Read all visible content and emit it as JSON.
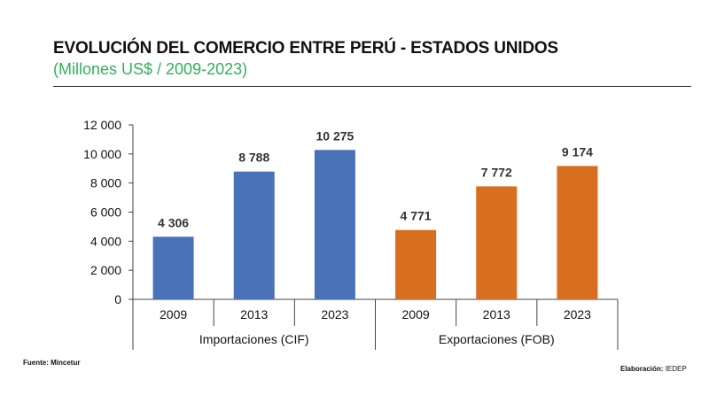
{
  "header": {
    "title": "EVOLUCIÓN DEL COMERCIO ENTRE PERÚ - ESTADOS UNIDOS",
    "subtitle": "(Millones US$ / 2009-2023)"
  },
  "footer": {
    "source": "Fuente: Mincetur",
    "credit_label": "Elaboración:",
    "credit_value": "IEDEP"
  },
  "chart_data": {
    "type": "bar",
    "title": "EVOLUCIÓN DEL COMERCIO ENTRE PERÚ - ESTADOS UNIDOS",
    "subtitle": "(Millones US$ / 2009-2023)",
    "xlabel": "",
    "ylabel": "",
    "ylim": [
      0,
      12000
    ],
    "yticks": [
      0,
      2000,
      4000,
      6000,
      8000,
      10000,
      12000
    ],
    "ytick_labels": [
      "0",
      "2 000",
      "4 000",
      "6 000",
      "8 000",
      "10 000",
      "12 000"
    ],
    "grid": false,
    "legend": "none",
    "groups": [
      {
        "name": "Importaciones (CIF)",
        "color": "#4a72b8",
        "categories": [
          "2009",
          "2013",
          "2023"
        ],
        "values": [
          4306,
          8788,
          10275
        ],
        "labels": [
          "4 306",
          "8 788",
          "10 275"
        ]
      },
      {
        "name": "Exportaciones (FOB)",
        "color": "#d86e1f",
        "categories": [
          "2009",
          "2013",
          "2023"
        ],
        "values": [
          4771,
          7772,
          9174
        ],
        "labels": [
          "4 771",
          "7 772",
          "9 174"
        ]
      }
    ]
  }
}
